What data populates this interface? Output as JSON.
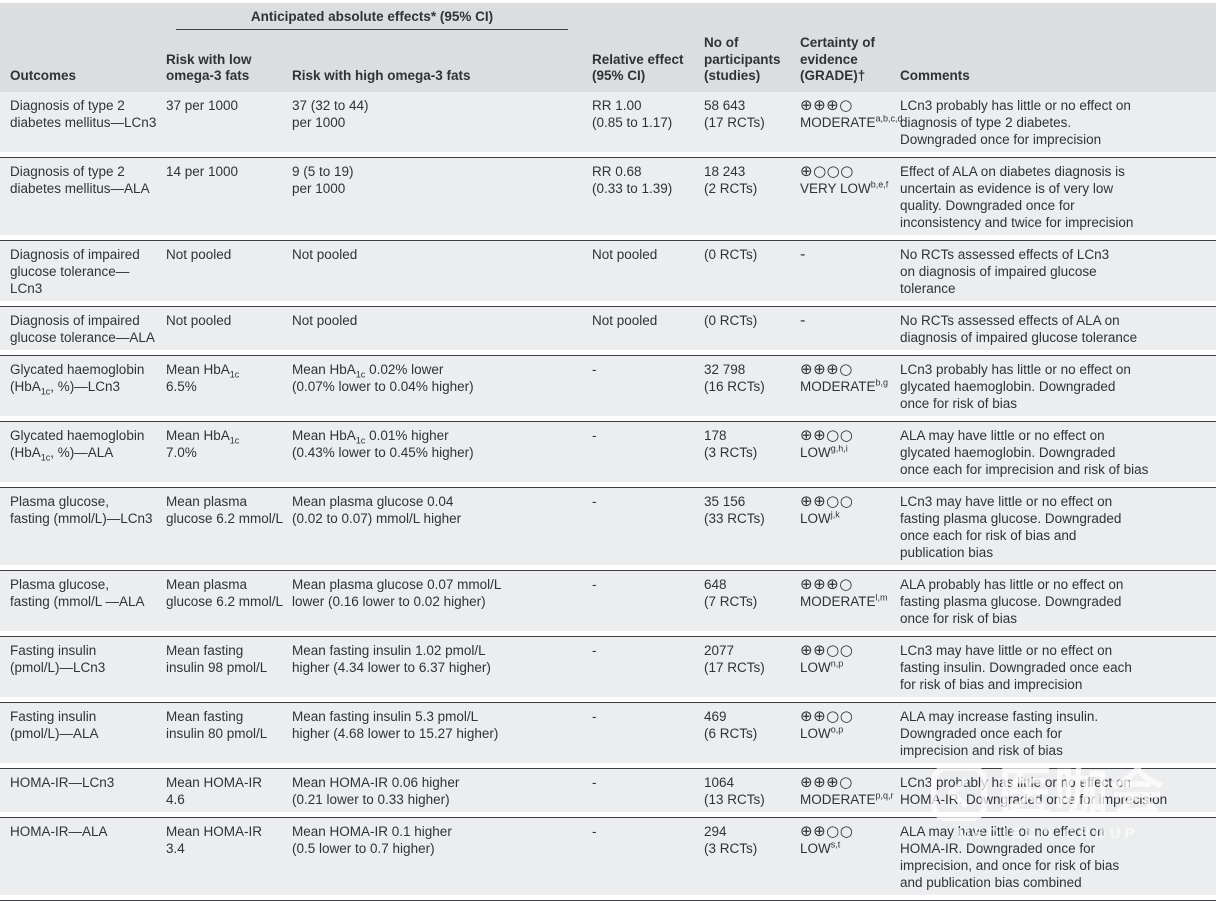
{
  "table": {
    "header": {
      "group_label": "Anticipated absolute effects* (95% CI)",
      "outcomes": "Outcomes",
      "risk_low": "Risk with low\nomega-3 fats",
      "risk_high": "Risk with high omega-3 fats",
      "relative": "Relative effect\n(95% CI)",
      "participants": "No of\nparticipants\n(studies)",
      "certainty": "Certainty of\nevidence\n(GRADE)†",
      "comments": "Comments"
    },
    "rows": [
      {
        "outcome": "Diagnosis of type 2\ndiabetes mellitus—LCn3",
        "risk_low": "37 per 1000",
        "risk_high": "37 (32 to 44)\nper 1000",
        "relative": "RR 1.00\n(0.85 to 1.17)",
        "participants": "58 643\n(17 RCTs)",
        "grade_symbols": "⊕⊕⊕○",
        "grade_label": "MODERATE",
        "grade_notes": "a,b,c,d",
        "comments": "LCn3 probably has little or no effect on\ndiagnosis of type 2 diabetes.\nDowngraded once for imprecision"
      },
      {
        "outcome": "Diagnosis of type 2\ndiabetes mellitus—ALA",
        "risk_low": "14 per 1000",
        "risk_high": "9 (5 to 19)\nper 1000",
        "relative": "RR 0.68\n(0.33 to 1.39)",
        "participants": "18 243\n(2 RCTs)",
        "grade_symbols": "⊕○○○",
        "grade_label": "VERY LOW",
        "grade_notes": "b,e,f",
        "comments": "Effect of ALA on diabetes diagnosis is\nuncertain as evidence is of very low\nquality. Downgraded once for\ninconsistency and twice for imprecision"
      },
      {
        "outcome": "Diagnosis of impaired\nglucose tolerance—LCn3",
        "risk_low": "Not pooled",
        "risk_high": "Not pooled",
        "relative": "Not pooled",
        "participants": "(0 RCTs)",
        "grade_symbols": "-",
        "grade_label": "",
        "grade_notes": "",
        "comments": "No RCTs assessed effects of LCn3\non diagnosis of impaired glucose\ntolerance"
      },
      {
        "outcome": "Diagnosis of impaired\nglucose tolerance—ALA",
        "risk_low": "Not pooled",
        "risk_high": "Not pooled",
        "relative": "Not pooled",
        "participants": "(0 RCTs)",
        "grade_symbols": "-",
        "grade_label": "",
        "grade_notes": "",
        "comments": "No RCTs assessed effects of ALA on\ndiagnosis of impaired glucose tolerance"
      },
      {
        "outcome": [
          {
            "t": "Glycated haemoglobin\n(HbA"
          },
          {
            "sub": "1c"
          },
          {
            "t": ", %)—LCn3"
          }
        ],
        "risk_low": [
          {
            "t": "Mean HbA"
          },
          {
            "sub": "1c"
          },
          {
            "t": "\n6.5%"
          }
        ],
        "risk_high": [
          {
            "t": "Mean HbA"
          },
          {
            "sub": "1c"
          },
          {
            "t": " 0.02% lower\n(0.07% lower to 0.04% higher)"
          }
        ],
        "relative": "-",
        "participants": "32 798\n(16 RCTs)",
        "grade_symbols": "⊕⊕⊕○",
        "grade_label": "MODERATE",
        "grade_notes": "b,g",
        "comments": "LCn3 probably has little or no effect on\nglycated haemoglobin. Downgraded\nonce for risk of bias"
      },
      {
        "outcome": [
          {
            "t": "Glycated haemoglobin\n(HbA"
          },
          {
            "sub": "1c"
          },
          {
            "t": ", %)—ALA"
          }
        ],
        "risk_low": [
          {
            "t": "Mean HbA"
          },
          {
            "sub": "1c"
          },
          {
            "t": "\n7.0%"
          }
        ],
        "risk_high": [
          {
            "t": "Mean HbA"
          },
          {
            "sub": "1c"
          },
          {
            "t": " 0.01% higher\n(0.43% lower to 0.45% higher)"
          }
        ],
        "relative": "-",
        "participants": "178\n(3 RCTs)",
        "grade_symbols": "⊕⊕○○",
        "grade_label": "LOW",
        "grade_notes": "g,h,i",
        "comments": "ALA may have little or no effect on\nglycated haemoglobin. Downgraded\nonce each for imprecision and risk of bias"
      },
      {
        "outcome": "Plasma glucose,\nfasting (mmol/L)—LCn3",
        "risk_low": "Mean plasma\nglucose 6.2 mmol/L",
        "risk_high": "Mean plasma glucose 0.04\n(0.02 to 0.07) mmol/L higher",
        "relative": "-",
        "participants": "35 156\n(33 RCTs)",
        "grade_symbols": "⊕⊕○○",
        "grade_label": "LOW",
        "grade_notes": "j,k",
        "comments": "LCn3 may have little or no effect on\nfasting plasma glucose. Downgraded\nonce each for risk of bias and\npublication bias"
      },
      {
        "outcome": "Plasma glucose,\nfasting (mmol/L —ALA",
        "risk_low": "Mean plasma\nglucose 6.2 mmol/L",
        "risk_high": "Mean plasma glucose 0.07 mmol/L\nlower (0.16 lower to 0.02 higher)",
        "relative": "-",
        "participants": "648\n(7 RCTs)",
        "grade_symbols": "⊕⊕⊕○",
        "grade_label": "MODERATE",
        "grade_notes": "l,m",
        "comments": "ALA probably has little or no effect on\nfasting plasma glucose. Downgraded\nonce for risk of bias"
      },
      {
        "outcome": "Fasting insulin\n(pmol/L)—LCn3",
        "risk_low": "Mean fasting\ninsulin 98 pmol/L",
        "risk_high": "Mean fasting insulin 1.02 pmol/L\nhigher (4.34 lower to 6.37 higher)",
        "relative": "-",
        "participants": "2077\n(17 RCTs)",
        "grade_symbols": "⊕⊕○○",
        "grade_label": "LOW",
        "grade_notes": "n,p",
        "comments": "LCn3 may have little or no effect on\nfasting insulin. Downgraded once each\nfor risk of bias and imprecision"
      },
      {
        "outcome": "Fasting insulin\n(pmol/L)—ALA",
        "risk_low": "Mean fasting\ninsulin 80 pmol/L",
        "risk_high": "Mean fasting insulin 5.3 pmol/L\nhigher (4.68 lower to 15.27 higher)",
        "relative": "-",
        "participants": "469\n(6 RCTs)",
        "grade_symbols": "⊕⊕○○",
        "grade_label": "LOW",
        "grade_notes": "o,p",
        "comments": "ALA may increase fasting insulin.\nDowngraded once each for\nimprecision and risk of bias"
      },
      {
        "outcome": "HOMA-IR—LCn3",
        "risk_low": "Mean HOMA-IR 4.6",
        "risk_high": "Mean HOMA-IR 0.06 higher\n(0.21 lower to 0.33 higher)",
        "relative": "-",
        "participants": "1064\n(13 RCTs)",
        "grade_symbols": "⊕⊕⊕○",
        "grade_label": "MODERATE",
        "grade_notes": "p,q,r",
        "comments": "LCn3 probably has little or no effect on\nHOMA-IR. Downgraded once for imprecision"
      },
      {
        "outcome": "HOMA-IR—ALA",
        "risk_low": "Mean HOMA-IR 3.4",
        "risk_high": "Mean HOMA-IR 0.1 higher\n(0.5 lower to 0.7 higher)",
        "relative": "-",
        "participants": "294\n(3 RCTs)",
        "grade_symbols": "⊕⊕○○",
        "grade_label": "LOW",
        "grade_notes": "s,t",
        "comments": "ALA may have little or no effect on\nHOMA-IR. Downgraded once for\nimprecision, and once for risk of bias\nand publication bias combined"
      }
    ]
  },
  "watermark": {
    "cn": "医咖会",
    "en": "MEDIECO GROUP"
  }
}
